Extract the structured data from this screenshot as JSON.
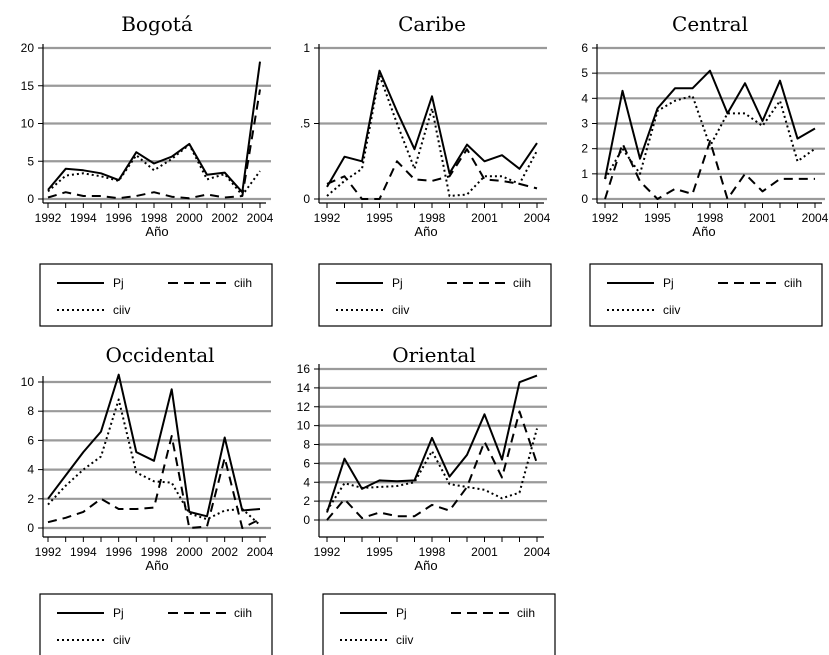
{
  "legend": {
    "entries": [
      "Pj",
      "ciih",
      "ciiv"
    ]
  },
  "chart_data": [
    {
      "type": "line",
      "title": "Bogotá",
      "xlabel": "Año",
      "ylabel": "",
      "x": [
        1992,
        1993,
        1994,
        1995,
        1996,
        1997,
        1998,
        1999,
        2000,
        2001,
        2002,
        2003,
        2004
      ],
      "xticks": [
        "1992",
        "1994",
        "1996",
        "1998",
        "2000",
        "2002",
        "2004"
      ],
      "yticks": [
        "0",
        "5",
        "10",
        "15",
        "20"
      ],
      "ylim": [
        0,
        20
      ],
      "grid": true,
      "legend_position": "below",
      "series": [
        {
          "name": "Pj",
          "style": "solid",
          "values": [
            1.2,
            4.0,
            3.8,
            3.4,
            2.5,
            6.2,
            4.7,
            5.6,
            7.3,
            3.2,
            3.5,
            0.9,
            18.2
          ]
        },
        {
          "name": "ciih",
          "style": "dashed",
          "values": [
            0.2,
            0.9,
            0.4,
            0.4,
            0.1,
            0.4,
            0.9,
            0.3,
            0.1,
            0.6,
            0.2,
            0.4,
            14.5
          ]
        },
        {
          "name": "ciiv",
          "style": "dotted",
          "values": [
            1.0,
            3.1,
            3.4,
            3.0,
            2.4,
            5.8,
            3.8,
            5.3,
            7.2,
            2.6,
            3.3,
            0.5,
            3.7
          ]
        }
      ]
    },
    {
      "type": "line",
      "title": "Caribe",
      "xlabel": "Año",
      "ylabel": "",
      "x": [
        1992,
        1993,
        1994,
        1995,
        1996,
        1997,
        1998,
        1999,
        2000,
        2001,
        2002,
        2003,
        2004
      ],
      "xticks": [
        "1992",
        "1995",
        "1998",
        "2001",
        "2004"
      ],
      "yticks": [
        "0",
        ".5",
        "1"
      ],
      "ylim": [
        0,
        1
      ],
      "grid": true,
      "legend_position": "below",
      "series": [
        {
          "name": "Pj",
          "style": "solid",
          "values": [
            0.08,
            0.28,
            0.25,
            0.85,
            0.58,
            0.33,
            0.68,
            0.17,
            0.36,
            0.25,
            0.29,
            0.2,
            0.37
          ]
        },
        {
          "name": "ciih",
          "style": "dashed",
          "values": [
            0.1,
            0.15,
            0.0,
            0.0,
            0.25,
            0.13,
            0.12,
            0.15,
            0.33,
            0.13,
            0.12,
            0.1,
            0.07
          ]
        },
        {
          "name": "ciiv",
          "style": "dotted",
          "values": [
            0.02,
            0.12,
            0.2,
            0.82,
            0.5,
            0.2,
            0.6,
            0.02,
            0.03,
            0.15,
            0.15,
            0.1,
            0.32
          ]
        }
      ]
    },
    {
      "type": "line",
      "title": "Central",
      "xlabel": "Año",
      "ylabel": "",
      "x": [
        1992,
        1993,
        1994,
        1995,
        1996,
        1997,
        1998,
        1999,
        2000,
        2001,
        2002,
        2003,
        2004
      ],
      "xticks": [
        "1992",
        "1995",
        "1998",
        "2001",
        "2004"
      ],
      "yticks": [
        "0",
        "1",
        "2",
        "3",
        "4",
        "5",
        "6"
      ],
      "ylim": [
        0,
        6
      ],
      "grid": true,
      "legend_position": "below",
      "series": [
        {
          "name": "Pj",
          "style": "solid",
          "values": [
            0.8,
            4.3,
            1.6,
            3.6,
            4.4,
            4.4,
            5.1,
            3.4,
            4.6,
            3.1,
            4.7,
            2.4,
            2.8
          ]
        },
        {
          "name": "ciih",
          "style": "dashed",
          "values": [
            0.0,
            2.2,
            0.7,
            0.0,
            0.4,
            0.2,
            2.3,
            0.0,
            1.0,
            0.3,
            0.8,
            0.8,
            0.8
          ]
        },
        {
          "name": "ciiv",
          "style": "dotted",
          "values": [
            0.8,
            2.0,
            1.0,
            3.5,
            3.9,
            4.1,
            2.1,
            3.4,
            3.4,
            2.9,
            3.9,
            1.5,
            2.0
          ]
        }
      ]
    },
    {
      "type": "line",
      "title": "Occidental",
      "xlabel": "Año",
      "ylabel": "",
      "x": [
        1992,
        1993,
        1994,
        1995,
        1996,
        1997,
        1998,
        1999,
        2000,
        2001,
        2002,
        2003,
        2004
      ],
      "xticks": [
        "1992",
        "1994",
        "1996",
        "1998",
        "2000",
        "2002",
        "2004"
      ],
      "yticks": [
        "0",
        "2",
        "4",
        "6",
        "8",
        "10"
      ],
      "ylim": [
        0,
        10
      ],
      "grid": true,
      "legend_position": "below",
      "series": [
        {
          "name": "Pj",
          "style": "solid",
          "values": [
            2.0,
            3.6,
            5.2,
            6.6,
            10.5,
            5.2,
            4.6,
            9.5,
            1.1,
            0.8,
            6.2,
            1.2,
            1.3
          ]
        },
        {
          "name": "ciih",
          "style": "dashed",
          "values": [
            0.4,
            0.7,
            1.1,
            2.0,
            1.3,
            1.3,
            1.4,
            6.3,
            0.0,
            0.1,
            4.8,
            0.0,
            0.6
          ]
        },
        {
          "name": "ciiv",
          "style": "dotted",
          "values": [
            1.6,
            2.9,
            4.0,
            4.9,
            8.8,
            3.8,
            3.2,
            3.1,
            1.0,
            0.6,
            1.2,
            1.3,
            0.2
          ]
        }
      ]
    },
    {
      "type": "line",
      "title": "Oriental",
      "xlabel": "Año",
      "ylabel": "",
      "x": [
        1992,
        1993,
        1994,
        1995,
        1996,
        1997,
        1998,
        1999,
        2000,
        2001,
        2002,
        2003,
        2004
      ],
      "xticks": [
        "1992",
        "1995",
        "1998",
        "2001",
        "2004"
      ],
      "yticks": [
        "0",
        "2",
        "4",
        "6",
        "8",
        "10",
        "12",
        "14",
        "16"
      ],
      "ylim": [
        0,
        16
      ],
      "grid": true,
      "legend_position": "below",
      "series": [
        {
          "name": "Pj",
          "style": "solid",
          "values": [
            0.8,
            6.5,
            3.3,
            4.2,
            4.1,
            4.2,
            8.7,
            4.6,
            6.9,
            11.2,
            6.4,
            14.6,
            15.3
          ]
        },
        {
          "name": "ciih",
          "style": "dashed",
          "values": [
            0.0,
            2.2,
            0.2,
            0.8,
            0.4,
            0.4,
            1.6,
            1.0,
            3.5,
            8.3,
            4.5,
            11.5,
            6.0
          ]
        },
        {
          "name": "ciiv",
          "style": "dotted",
          "values": [
            1.0,
            3.9,
            3.4,
            3.5,
            3.6,
            4.0,
            7.3,
            3.8,
            3.5,
            3.2,
            2.3,
            2.9,
            9.7
          ]
        }
      ]
    }
  ]
}
